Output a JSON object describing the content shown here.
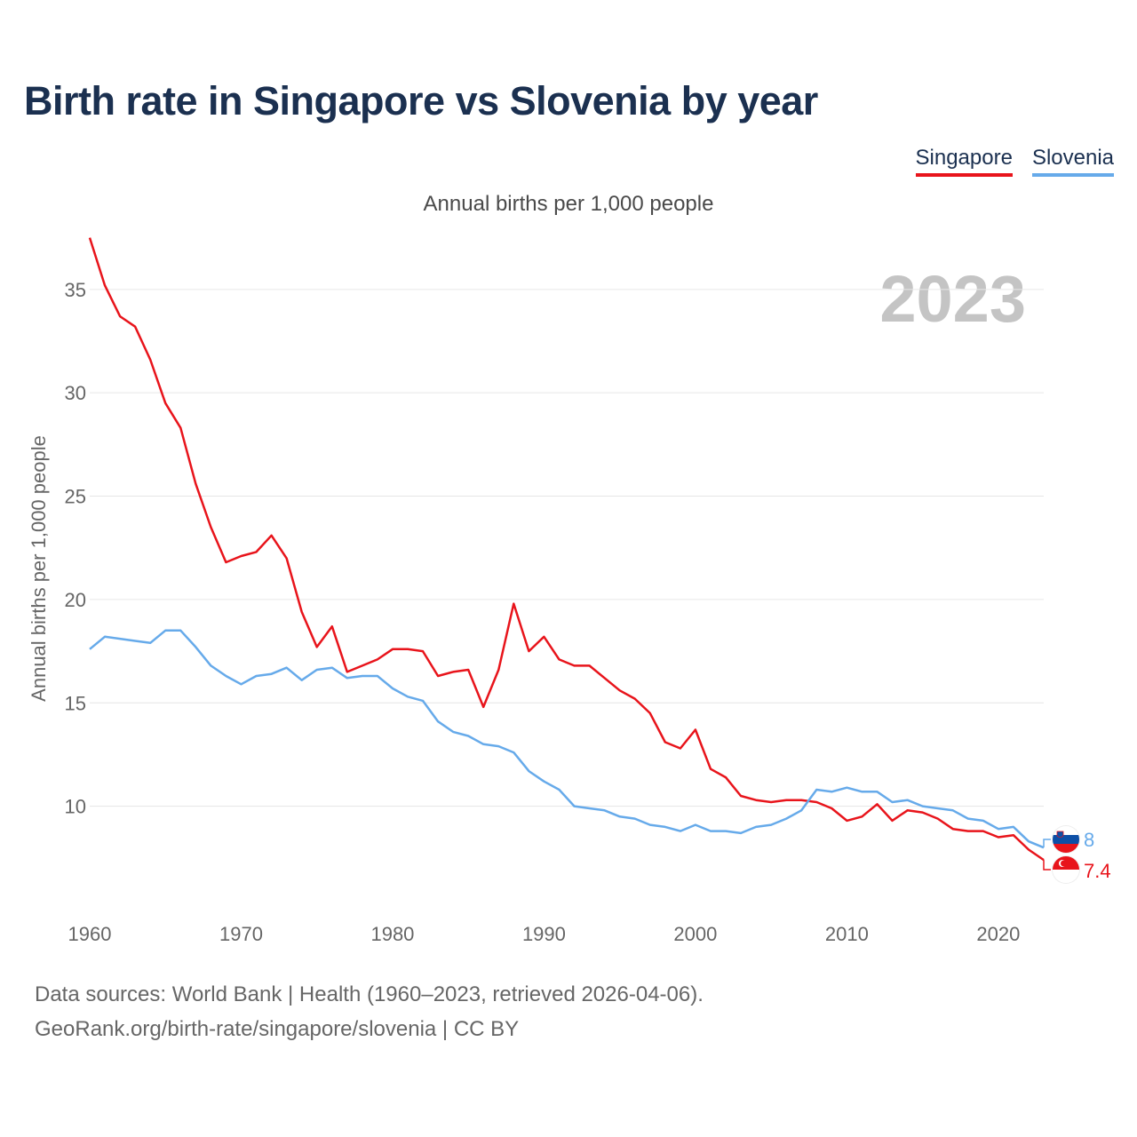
{
  "title": "Birth rate in Singapore vs Slovenia by year",
  "subtitle": "Annual births per 1,000 people",
  "footer": {
    "line1": "Data sources: World Bank | Health (1960–2023, retrieved 2026-04-06).",
    "line2": "GeoRank.org/birth-rate/singapore/slovenia | CC BY"
  },
  "legend": [
    {
      "name": "Singapore",
      "color": "#e8141b"
    },
    {
      "name": "Slovenia",
      "color": "#66aaea"
    }
  ],
  "chart_data": {
    "type": "line",
    "title": "Birth rate in Singapore vs Slovenia by year",
    "xlabel": "",
    "ylabel": "Annual births per 1,000 people",
    "year_watermark": "2023",
    "xlim": [
      1960,
      2023
    ],
    "ylim": [
      5,
      38
    ],
    "x_ticks": [
      1960,
      1970,
      1980,
      1990,
      2000,
      2010,
      2020
    ],
    "y_ticks": [
      10,
      15,
      20,
      25,
      30,
      35
    ],
    "grid": true,
    "x": [
      1960,
      1961,
      1962,
      1963,
      1964,
      1965,
      1966,
      1967,
      1968,
      1969,
      1970,
      1971,
      1972,
      1973,
      1974,
      1975,
      1976,
      1977,
      1978,
      1979,
      1980,
      1981,
      1982,
      1983,
      1984,
      1985,
      1986,
      1987,
      1988,
      1989,
      1990,
      1991,
      1992,
      1993,
      1994,
      1995,
      1996,
      1997,
      1998,
      1999,
      2000,
      2001,
      2002,
      2003,
      2004,
      2005,
      2006,
      2007,
      2008,
      2009,
      2010,
      2011,
      2012,
      2013,
      2014,
      2015,
      2016,
      2017,
      2018,
      2019,
      2020,
      2021,
      2022,
      2023
    ],
    "series": [
      {
        "name": "Singapore",
        "color": "#e8141b",
        "end_label": "7.4",
        "values": [
          37.5,
          35.2,
          33.7,
          33.2,
          31.6,
          29.5,
          28.3,
          25.6,
          23.5,
          21.8,
          22.1,
          22.3,
          23.1,
          22.0,
          19.4,
          17.7,
          18.7,
          16.5,
          16.8,
          17.1,
          17.6,
          17.6,
          17.5,
          16.3,
          16.5,
          16.6,
          14.8,
          16.6,
          19.8,
          17.5,
          18.2,
          17.1,
          16.8,
          16.8,
          16.2,
          15.6,
          15.2,
          14.5,
          13.1,
          12.8,
          13.7,
          11.8,
          11.4,
          10.5,
          10.3,
          10.2,
          10.3,
          10.3,
          10.2,
          9.9,
          9.3,
          9.5,
          10.1,
          9.3,
          9.8,
          9.7,
          9.4,
          8.9,
          8.8,
          8.8,
          8.5,
          8.6,
          7.9,
          7.4
        ]
      },
      {
        "name": "Slovenia",
        "color": "#66aaea",
        "end_label": "8",
        "values": [
          17.6,
          18.2,
          18.1,
          18.0,
          17.9,
          18.5,
          18.5,
          17.7,
          16.8,
          16.3,
          15.9,
          16.3,
          16.4,
          16.7,
          16.1,
          16.6,
          16.7,
          16.2,
          16.3,
          16.3,
          15.7,
          15.3,
          15.1,
          14.1,
          13.6,
          13.4,
          13.0,
          12.9,
          12.6,
          11.7,
          11.2,
          10.8,
          10.0,
          9.9,
          9.8,
          9.5,
          9.4,
          9.1,
          9.0,
          8.8,
          9.1,
          8.8,
          8.8,
          8.7,
          9.0,
          9.1,
          9.4,
          9.8,
          10.8,
          10.7,
          10.9,
          10.7,
          10.7,
          10.2,
          10.3,
          10.0,
          9.9,
          9.8,
          9.4,
          9.3,
          8.9,
          9.0,
          8.3,
          8.0
        ]
      }
    ]
  }
}
